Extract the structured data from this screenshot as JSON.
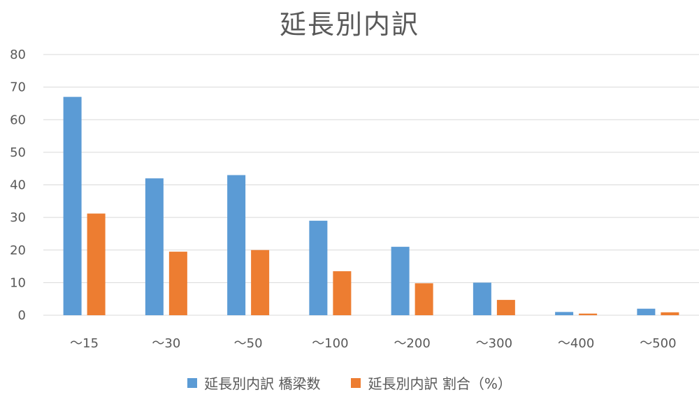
{
  "chart_data": {
    "type": "bar",
    "title": "延長別内訳",
    "categories": [
      "～15",
      "～30",
      "～50",
      "～100",
      "～200",
      "～300",
      "～400",
      "～500"
    ],
    "series": [
      {
        "name": "延長別内訳 橋梁数",
        "color": "#5b9bd5",
        "values": [
          67,
          42,
          43,
          29,
          21,
          10,
          1,
          2
        ]
      },
      {
        "name": "延長別内訳 割合（%）",
        "color": "#ed7d31",
        "values": [
          31.2,
          19.5,
          20.0,
          13.5,
          9.8,
          4.7,
          0.5,
          0.9
        ]
      }
    ],
    "ylim": [
      0,
      80
    ],
    "yticks": [
      0,
      10,
      20,
      30,
      40,
      50,
      60,
      70,
      80
    ],
    "grid": true,
    "legend_position": "bottom"
  }
}
